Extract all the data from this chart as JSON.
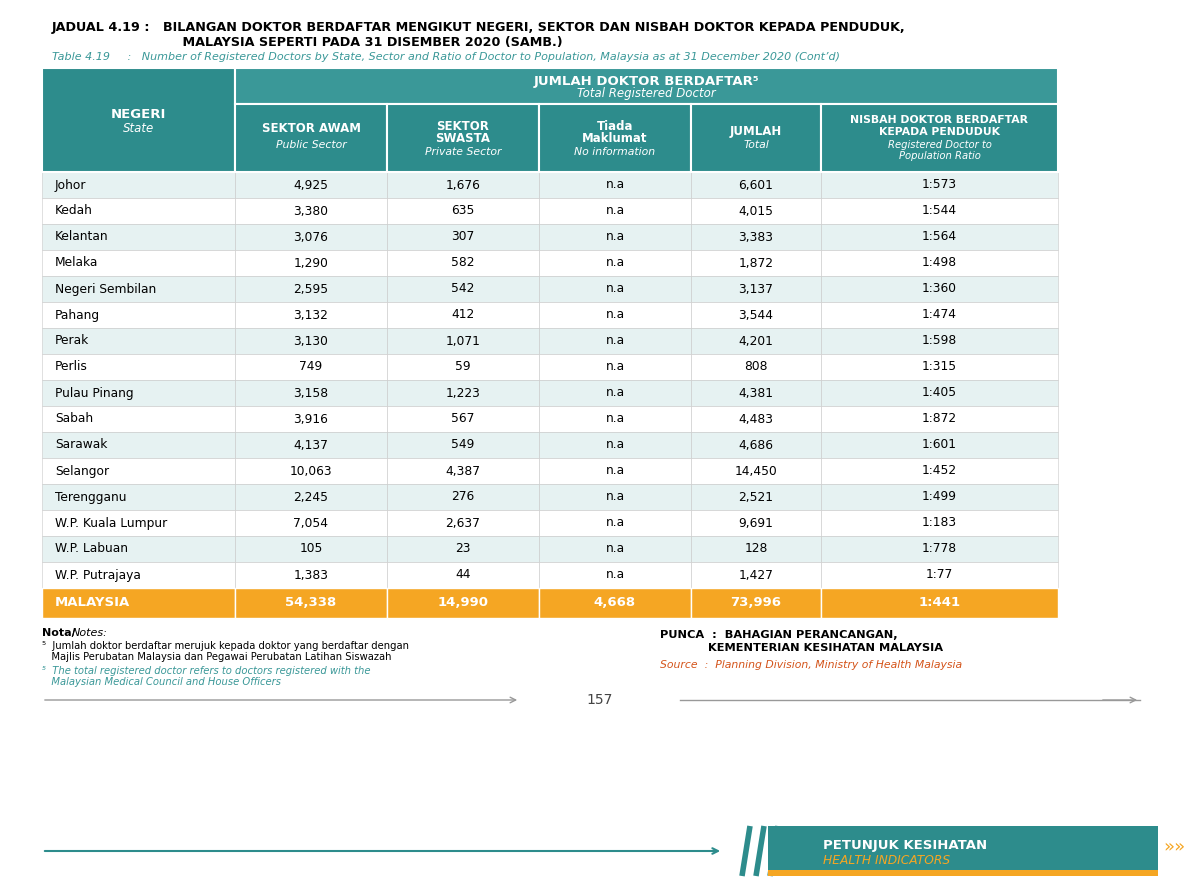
{
  "title_malay_line1": "JADUAL 4.19 :   BILANGAN DOKTOR BERDAFTAR MENGIKUT NEGERI, SEKTOR DAN NISBAH DOKTOR KEPADA PENDUDUK,",
  "title_malay_line2": "                             MALAYSIA SEPERTI PADA 31 DISEMBER 2020 (SAMB.)",
  "title_english": "Table 4.19     :   Number of Registered Doctors by State, Sector and Ratio of Doctor to Population, Malaysia as at 31 December 2020 (Cont’d)",
  "header_main": "JUMLAH DOKTOR BERDAFTAR⁵",
  "header_main_sub": "Total Registered Doctor",
  "rows": [
    [
      "Johor",
      "4,925",
      "1,676",
      "n.a",
      "6,601",
      "1:573"
    ],
    [
      "Kedah",
      "3,380",
      "635",
      "n.a",
      "4,015",
      "1:544"
    ],
    [
      "Kelantan",
      "3,076",
      "307",
      "n.a",
      "3,383",
      "1:564"
    ],
    [
      "Melaka",
      "1,290",
      "582",
      "n.a",
      "1,872",
      "1:498"
    ],
    [
      "Negeri Sembilan",
      "2,595",
      "542",
      "n.a",
      "3,137",
      "1:360"
    ],
    [
      "Pahang",
      "3,132",
      "412",
      "n.a",
      "3,544",
      "1:474"
    ],
    [
      "Perak",
      "3,130",
      "1,071",
      "n.a",
      "4,201",
      "1:598"
    ],
    [
      "Perlis",
      "749",
      "59",
      "n.a",
      "808",
      "1:315"
    ],
    [
      "Pulau Pinang",
      "3,158",
      "1,223",
      "n.a",
      "4,381",
      "1:405"
    ],
    [
      "Sabah",
      "3,916",
      "567",
      "n.a",
      "4,483",
      "1:872"
    ],
    [
      "Sarawak",
      "4,137",
      "549",
      "n.a",
      "4,686",
      "1:601"
    ],
    [
      "Selangor",
      "10,063",
      "4,387",
      "n.a",
      "14,450",
      "1:452"
    ],
    [
      "Terengganu",
      "2,245",
      "276",
      "n.a",
      "2,521",
      "1:499"
    ],
    [
      "W.P. Kuala Lumpur",
      "7,054",
      "2,637",
      "n.a",
      "9,691",
      "1:183"
    ],
    [
      "W.P. Labuan",
      "105",
      "23",
      "n.a",
      "128",
      "1:778"
    ],
    [
      "W.P. Putrajaya",
      "1,383",
      "44",
      "n.a",
      "1,427",
      "1:77"
    ]
  ],
  "total_row": [
    "MALAYSIA",
    "54,338",
    "14,990",
    "4,668",
    "73,996",
    "1:441"
  ],
  "notes_malay_1a": "⁵  Jumlah doktor berdaftar merujuk kepada doktor yang berdaftar dengan",
  "notes_malay_1b": "   Majlis Perubatan Malaysia dan Pegawai Perubatan Latihan Siswazah",
  "notes_english_1a": "⁵  The total registered doctor refers to doctors registered with the",
  "notes_english_1b": "   Malaysian Medical Council and House Officers",
  "source_line1": "PUNCA  :  BAHAGIAN PERANCANGAN,",
  "source_line2": "            KEMENTERIAN KESIHATAN MALAYSIA",
  "source_italic": "Source  :  Planning Division, Ministry of Health Malaysia",
  "page_number": "157",
  "footer_teal": "PETUNJUK KESIHATAN",
  "footer_orange": "HEALTH INDICATORS",
  "color_teal_dark": "#2d8c8c",
  "color_teal_header": "#3a9898",
  "color_orange": "#F5A623",
  "color_row_even": "#e6f2f2",
  "color_row_odd": "#ffffff",
  "color_total_bg": "#F5A623",
  "color_title_english": "#3a9898",
  "color_source_italic": "#d4541a",
  "bg_color": "#f0f0f0"
}
